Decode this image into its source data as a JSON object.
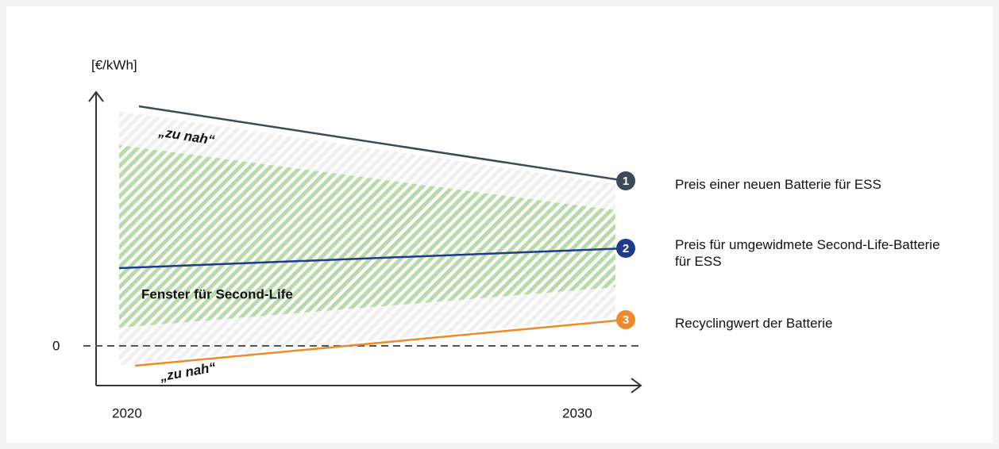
{
  "axis_label": "[€/kWh]",
  "zero_label": "0",
  "x_labels": [
    "2020",
    "2030"
  ],
  "annotations": {
    "top": "„zu nah“",
    "bottom": "„zu nah“",
    "window": "Fenster für Second-Life"
  },
  "legend": [
    {
      "number": "1",
      "text": "Preis einer neuen Batterie für ESS"
    },
    {
      "number": "2",
      "text": "Preis für umgewidmete Second-Life-Batterie für ESS"
    },
    {
      "number": "3",
      "text": "Recyclingwert der Batterie"
    }
  ]
}
